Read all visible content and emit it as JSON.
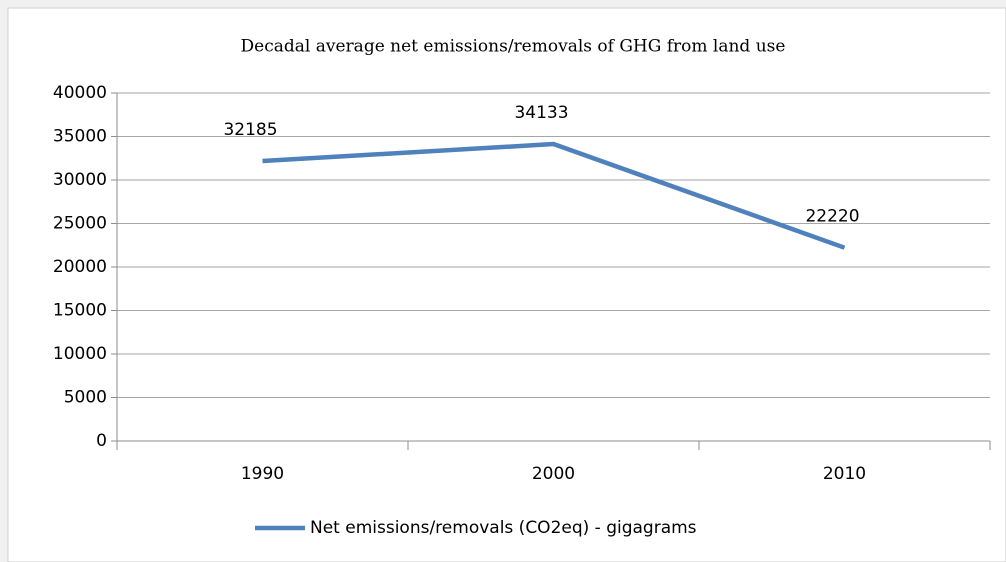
{
  "chart_data": {
    "type": "line",
    "title": "Decadal average net emissions/removals of GHG from land use",
    "categories": [
      "1990",
      "2000",
      "2010"
    ],
    "series": [
      {
        "name": "Net emissions/removals (CO2eq) - gigagrams",
        "color": "#4f81bd",
        "values": [
          32185,
          34133,
          22220
        ]
      }
    ],
    "ylim": [
      0,
      40000
    ],
    "yticks": [
      0,
      5000,
      10000,
      15000,
      20000,
      25000,
      30000,
      35000,
      40000
    ],
    "grid": true,
    "legend": "bottom"
  }
}
